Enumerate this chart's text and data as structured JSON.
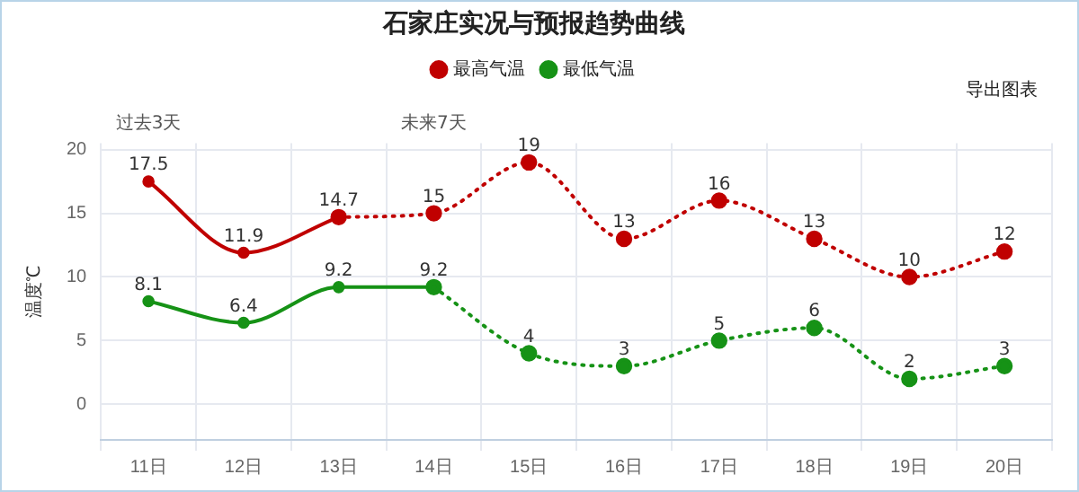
{
  "chart_data": {
    "type": "line",
    "title": "石家庄实况与预报趋势曲线",
    "ylabel": "温度℃",
    "categories": [
      "11日",
      "12日",
      "13日",
      "14日",
      "15日",
      "16日",
      "17日",
      "18日",
      "19日",
      "20日"
    ],
    "series": [
      {
        "name": "最高气温",
        "color": "#c00000",
        "line_style": "solid",
        "values": [
          17.5,
          11.9,
          14.7,
          null,
          null,
          null,
          null,
          null,
          null,
          null
        ],
        "value_labels": [
          "17.5",
          "11.9",
          "14.7",
          null,
          null,
          null,
          null,
          null,
          null,
          null
        ]
      },
      {
        "color": "#c00000",
        "line_style": "dotted",
        "values": [
          null,
          null,
          14.7,
          15,
          19,
          13,
          16,
          13,
          10,
          12
        ],
        "value_labels": [
          null,
          null,
          null,
          "15",
          "19",
          "13",
          "16",
          "13",
          "10",
          "12"
        ]
      },
      {
        "name": "最低气温",
        "color": "#169216",
        "line_style": "solid",
        "values": [
          8.1,
          6.4,
          9.2,
          9.2,
          null,
          null,
          null,
          null,
          null,
          null
        ],
        "value_labels": [
          "8.1",
          "6.4",
          "9.2",
          "9.2",
          null,
          null,
          null,
          null,
          null,
          null
        ]
      },
      {
        "color": "#169216",
        "line_style": "dotted",
        "values": [
          null,
          null,
          null,
          9.2,
          4,
          3,
          5,
          6,
          2,
          3
        ],
        "value_labels": [
          null,
          null,
          null,
          null,
          "4",
          "3",
          "5",
          "6",
          "2",
          "3"
        ]
      }
    ],
    "ylim": [
      -2.8,
      20.5
    ],
    "yticks": [
      0,
      5,
      10,
      15,
      20
    ],
    "grid": true,
    "legend": "top",
    "marker": "circle",
    "annotations": [
      "导出图表",
      "过去3天",
      "未来7天"
    ]
  }
}
